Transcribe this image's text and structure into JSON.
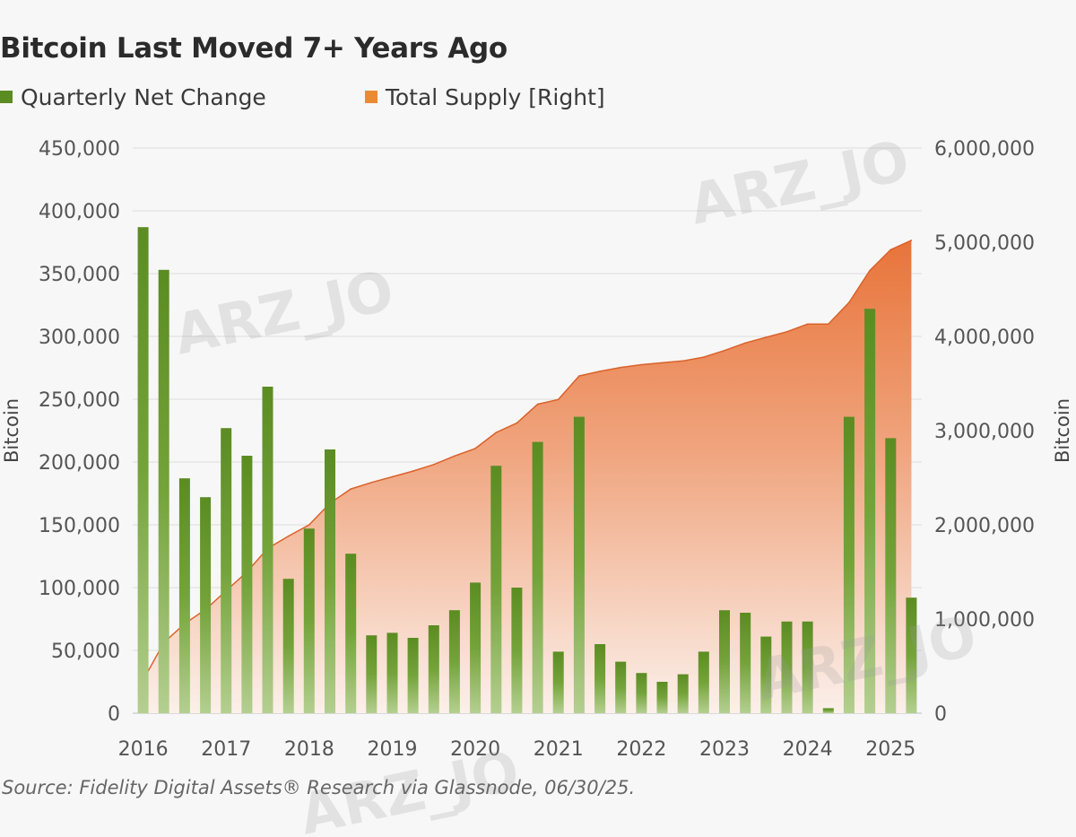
{
  "title": "Bitcoin Last Moved 7+ Years Ago",
  "legend": [
    {
      "label": "Quarterly Net Change",
      "color": "#5b8c22"
    },
    {
      "label": "Total Supply [Right]",
      "color": "#ec8a34"
    }
  ],
  "source": "Source: Fidelity Digital Assets® Research via Glassnode, 06/30/25.",
  "watermark": "ARZ_JO",
  "chart_data": {
    "type": "bar",
    "title": "Bitcoin Last Moved 7+ Years Ago",
    "ylabel": "Bitcoin",
    "ylabel_right": "Bitcoin",
    "ylim": [
      0,
      450000
    ],
    "ylim_right": [
      0,
      6000000
    ],
    "yticks": [
      0,
      50000,
      100000,
      150000,
      200000,
      250000,
      300000,
      350000,
      400000,
      450000
    ],
    "yticks_labels": [
      "0",
      "50,000",
      "100,000",
      "150,000",
      "200,000",
      "250,000",
      "300,000",
      "350,000",
      "400,000",
      "450,000"
    ],
    "yticks_right": [
      0,
      1000000,
      2000000,
      3000000,
      4000000,
      5000000,
      6000000
    ],
    "yticks_right_labels": [
      "0",
      "1,000,000",
      "2,000,000",
      "3,000,000",
      "4,000,000",
      "5,000,000",
      "6,000,000"
    ],
    "xtick_labels": [
      "2016",
      "2017",
      "2018",
      "2019",
      "2020",
      "2021",
      "2022",
      "2023",
      "2024",
      "2025"
    ],
    "grid": true,
    "legend_position": "top-left",
    "categories": [
      "2016 Q1",
      "2016 Q2",
      "2016 Q3",
      "2016 Q4",
      "2017 Q1",
      "2017 Q2",
      "2017 Q3",
      "2017 Q4",
      "2018 Q1",
      "2018 Q2",
      "2018 Q3",
      "2018 Q4",
      "2019 Q1",
      "2019 Q2",
      "2019 Q3",
      "2019 Q4",
      "2020 Q1",
      "2020 Q2",
      "2020 Q3",
      "2020 Q4",
      "2021 Q1",
      "2021 Q2",
      "2021 Q3",
      "2021 Q4",
      "2022 Q1",
      "2022 Q2",
      "2022 Q3",
      "2022 Q4",
      "2023 Q1",
      "2023 Q2",
      "2023 Q3",
      "2023 Q4",
      "2024 Q1",
      "2024 Q2",
      "2024 Q3",
      "2024 Q4",
      "2025 Q1",
      "2025 Q2"
    ],
    "series": [
      {
        "name": "Quarterly Net Change",
        "type": "bar",
        "axis": "left",
        "values": [
          387000,
          353000,
          187000,
          172000,
          227000,
          205000,
          260000,
          107000,
          147000,
          210000,
          127000,
          62000,
          64000,
          60000,
          70000,
          82000,
          104000,
          197000,
          100000,
          216000,
          49000,
          236000,
          55000,
          41000,
          32000,
          25000,
          31000,
          49000,
          82000,
          80000,
          61000,
          73000,
          73000,
          4000,
          236000,
          322000,
          219000,
          92000
        ]
      },
      {
        "name": "Total Supply [Right]",
        "type": "area",
        "axis": "right",
        "values": [
          350000,
          750000,
          950000,
          1100000,
          1300000,
          1500000,
          1750000,
          1880000,
          2000000,
          2230000,
          2380000,
          2450000,
          2510000,
          2570000,
          2640000,
          2730000,
          2810000,
          2980000,
          3080000,
          3280000,
          3330000,
          3580000,
          3630000,
          3670000,
          3700000,
          3720000,
          3740000,
          3780000,
          3850000,
          3930000,
          3990000,
          4050000,
          4130000,
          4130000,
          4360000,
          4700000,
          4920000,
          5020000
        ]
      }
    ]
  }
}
